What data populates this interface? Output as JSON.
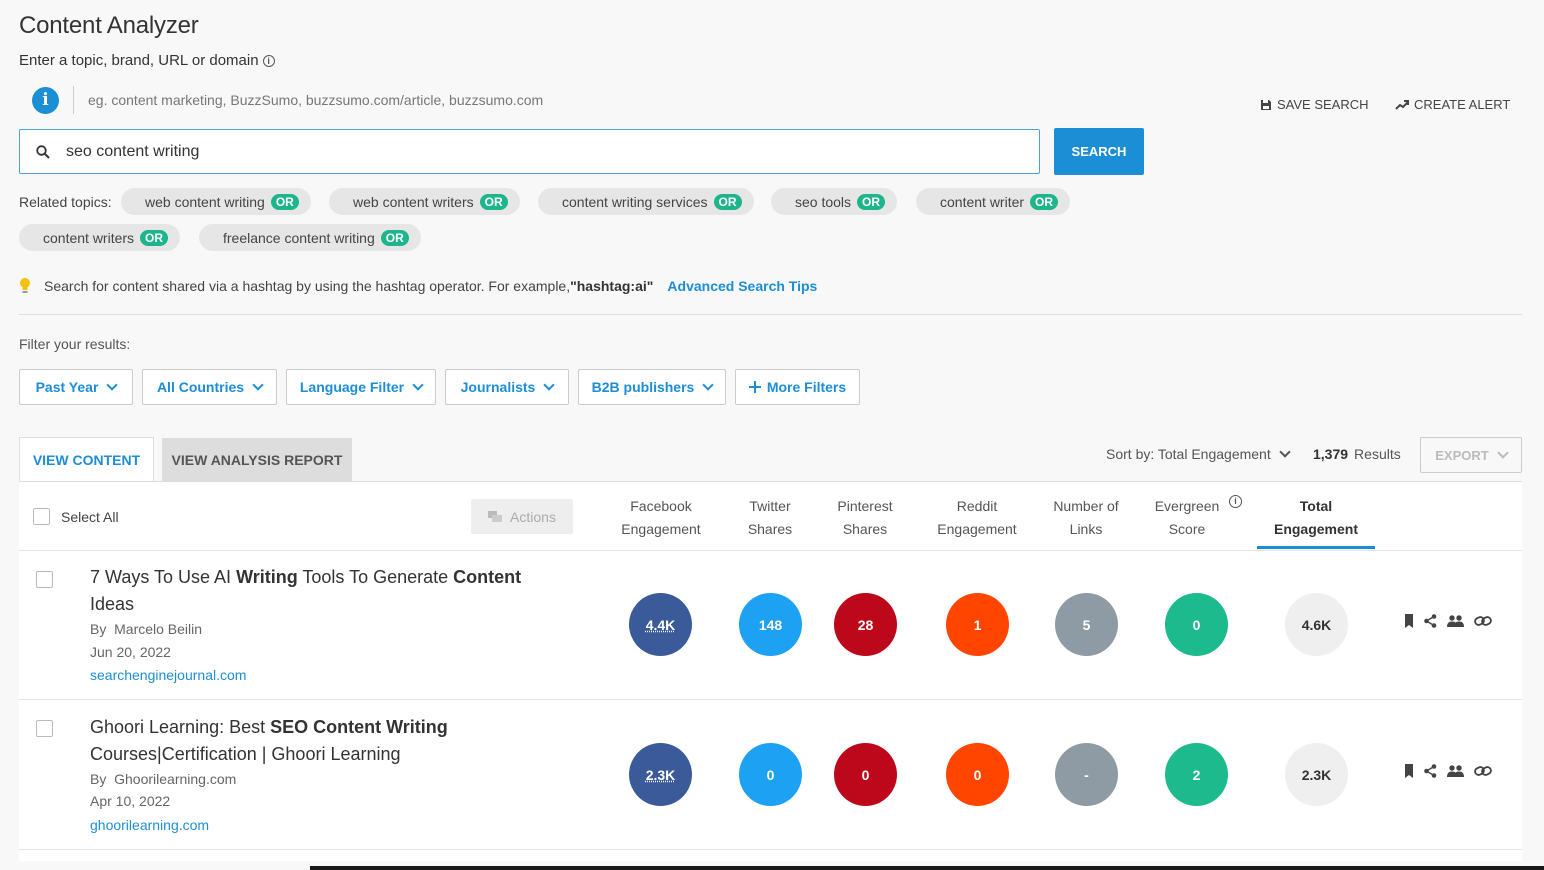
{
  "page": {
    "title": "Content Analyzer",
    "subtitle": "Enter a topic, brand, URL or domain",
    "hint": "eg. content marketing, BuzzSumo, buzzsumo.com/article, buzzsumo.com"
  },
  "top_actions": {
    "save_search": "SAVE SEARCH",
    "create_alert": "CREATE ALERT"
  },
  "search": {
    "value": "seo content writing",
    "button": "SEARCH"
  },
  "related": {
    "label": "Related topics:",
    "or_label": "OR",
    "chips": [
      "web content writing",
      "web content writers",
      "content writing services",
      "seo tools",
      "content writer",
      "content writers",
      "freelance content writing"
    ]
  },
  "tip": {
    "text": "Search for content shared via a hashtag by using the hashtag operator. For example, ",
    "example": "\"hashtag:ai\"",
    "link": "Advanced Search Tips"
  },
  "filters": {
    "label": "Filter your results:",
    "items": [
      "Past Year",
      "All Countries",
      "Language Filter",
      "Journalists",
      "B2B publishers"
    ],
    "more": "More Filters"
  },
  "tabs": {
    "view_content": "VIEW CONTENT",
    "view_analysis": "VIEW ANALYSIS REPORT"
  },
  "sort": {
    "label": "Sort by: Total Engagement",
    "count": "1,379",
    "results_label": "Results",
    "export": "EXPORT"
  },
  "table": {
    "select_all": "Select All",
    "actions": "Actions",
    "columns": [
      {
        "line1": "Facebook",
        "line2": "Engagement"
      },
      {
        "line1": "Twitter",
        "line2": "Shares"
      },
      {
        "line1": "Pinterest",
        "line2": "Shares"
      },
      {
        "line1": "Reddit",
        "line2": "Engagement"
      },
      {
        "line1": "Number of",
        "line2": "Links"
      },
      {
        "line1": "Evergreen",
        "line2": "Score"
      },
      {
        "line1": "Total",
        "line2": "Engagement"
      }
    ],
    "rows": [
      {
        "title_parts": [
          {
            "t": "7 Ways To Use AI ",
            "b": false
          },
          {
            "t": "Writing",
            "b": true
          },
          {
            "t": " Tools To Generate ",
            "b": false
          },
          {
            "t": "Content",
            "b": true
          },
          {
            "t": " Ideas",
            "b": false
          }
        ],
        "author_prefix": "By",
        "author": "Marcelo Beilin",
        "date": "Jun 20, 2022",
        "domain": "searchenginejournal.com",
        "metrics": [
          "4.4K",
          "148",
          "28",
          "1",
          "5",
          "0",
          "4.6K"
        ]
      },
      {
        "title_parts": [
          {
            "t": "Ghoori Learning: Best ",
            "b": false
          },
          {
            "t": "SEO Content Writing",
            "b": true
          },
          {
            "t": " Courses|Certification | Ghoori Learning",
            "b": false
          }
        ],
        "author_prefix": "By",
        "author": "Ghoorilearning.com",
        "date": "Apr 10, 2022",
        "domain": "ghoorilearning.com",
        "metrics": [
          "2.3K",
          "0",
          "0",
          "0",
          "-",
          "2",
          "2.3K"
        ]
      }
    ]
  },
  "colors": {
    "accent": "#1c8ed6",
    "facebook": "#3b5a9a",
    "twitter": "#1da1f2",
    "pinterest": "#bd081c",
    "reddit": "#ff4500",
    "links": "#8e9ba4",
    "evergreen": "#1dba8e",
    "or_badge": "#1eb58c"
  }
}
